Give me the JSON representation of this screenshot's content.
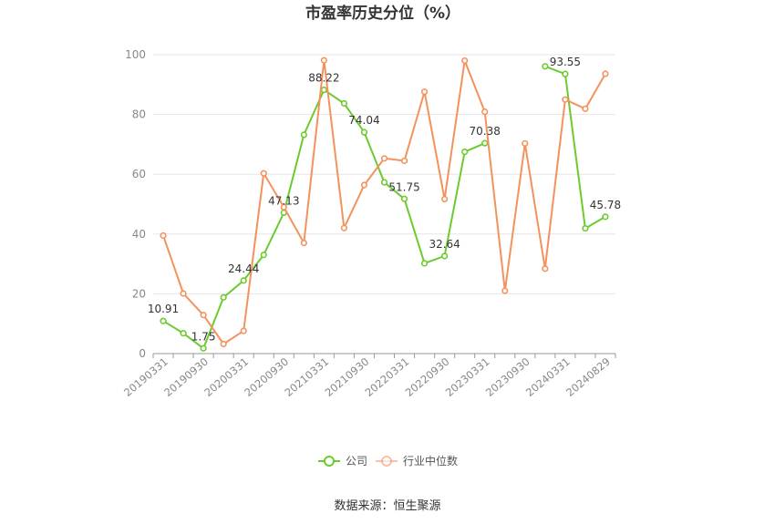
{
  "chart_data": {
    "type": "line",
    "title": "市盈率历史分位（%）",
    "source": "数据来源：恒生聚源",
    "ylim": [
      0,
      100
    ],
    "yticks": [
      0,
      20,
      40,
      60,
      80,
      100
    ],
    "grid": true,
    "legend_position": "bottom",
    "x": [
      "20190331",
      "20190630",
      "20190930",
      "20191231",
      "20200331",
      "20200630",
      "20200930",
      "20201231",
      "20210331",
      "20210630",
      "20210930",
      "20211231",
      "20220331",
      "20220630",
      "20220930",
      "20221231",
      "20230331",
      "20230630",
      "20230930",
      "20231231",
      "20240331",
      "20240630",
      "20240829"
    ],
    "xtick_labels": [
      "20190331",
      "20190930",
      "20200331",
      "20200930",
      "20210331",
      "20210930",
      "20220331",
      "20220930",
      "20230331",
      "20230930",
      "20240331",
      "20240829"
    ],
    "series": [
      {
        "name": "公司",
        "color": "#6bcb2e",
        "values": [
          10.91,
          6.8,
          1.75,
          18.8,
          24.44,
          33.0,
          47.13,
          73.2,
          88.22,
          83.7,
          74.04,
          57.3,
          51.75,
          30.2,
          32.64,
          67.5,
          70.38,
          null,
          null,
          96.1,
          93.55,
          41.9,
          45.78
        ],
        "labels": {
          "0": "10.91",
          "2": "1.75",
          "4": "24.44",
          "6": "47.13",
          "8": "88.22",
          "10": "74.04",
          "12": "51.75",
          "14": "32.64",
          "16": "70.38",
          "20": "93.55",
          "22": "45.78"
        }
      },
      {
        "name": "行业中位数",
        "color": "#f4925e",
        "values": [
          39.5,
          20.1,
          12.9,
          3.2,
          7.6,
          60.3,
          49.0,
          37.0,
          98.1,
          42.0,
          56.4,
          65.3,
          64.5,
          87.6,
          51.7,
          98.0,
          80.9,
          21.0,
          70.3,
          28.4,
          85.0,
          81.9,
          93.6
        ]
      }
    ]
  }
}
